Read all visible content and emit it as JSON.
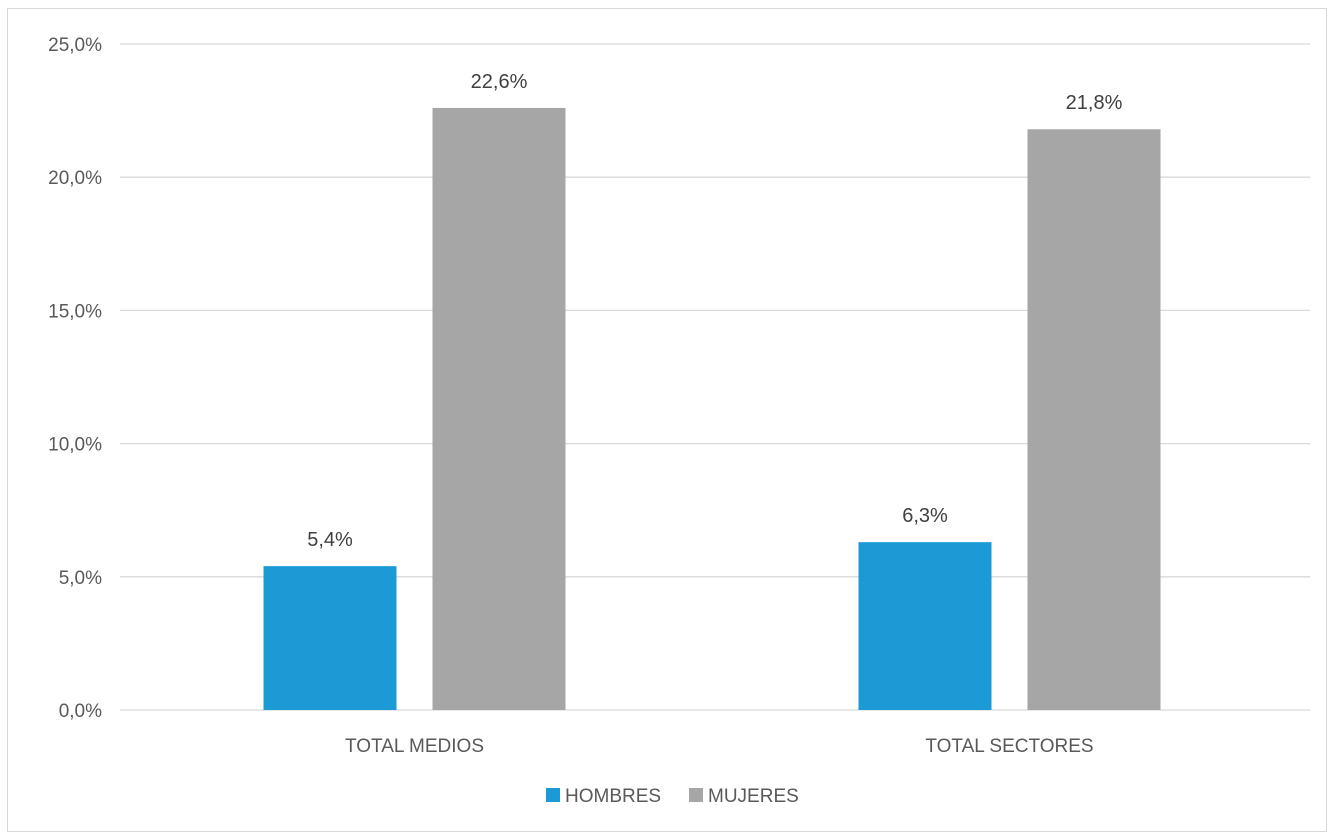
{
  "chart_data": {
    "type": "bar",
    "categories": [
      "TOTAL MEDIOS",
      "TOTAL SECTORES"
    ],
    "series": [
      {
        "name": "HOMBRES",
        "values": [
          5.4,
          6.3
        ],
        "labels": [
          "5,4%",
          "6,3%"
        ],
        "color": "#1b9ad6"
      },
      {
        "name": "MUJERES",
        "values": [
          22.6,
          21.8
        ],
        "labels": [
          "22,6%",
          "21,8%"
        ],
        "color": "#a6a6a6"
      }
    ],
    "ylim": [
      0,
      25
    ],
    "yticks": [
      0,
      5,
      10,
      15,
      20,
      25
    ],
    "ytick_labels": [
      "0,0%",
      "5,0%",
      "10,0%",
      "15,0%",
      "20,0%",
      "25,0%"
    ],
    "grid": true,
    "gridline_color": "#d9d9d9",
    "legend_position": "bottom",
    "title": "",
    "xlabel": "",
    "ylabel": ""
  }
}
